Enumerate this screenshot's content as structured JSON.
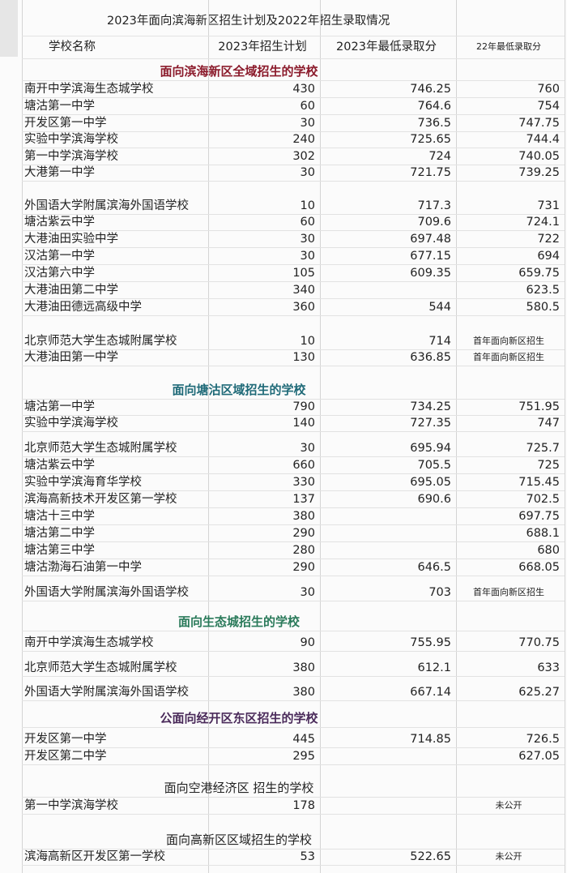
{
  "title": "2023年面向滨海新区招生计划及2022年招生录取情况",
  "header": {
    "columns": [
      "学校名称",
      "2023年招生计划",
      "2023年最低录取分",
      "22年最低录取分"
    ]
  },
  "sections": [
    {
      "heading": "面向滨海新区全域招生的学校",
      "rows": [
        [
          "南开中学滨海生态城学校",
          "430",
          "746.25",
          "760"
        ],
        [
          "塘沽第一中学",
          "60",
          "764.6",
          "754"
        ],
        [
          "开发区第一中学",
          "30",
          "736.5",
          "747.75"
        ],
        [
          "实验中学滨海学校",
          "240",
          "725.65",
          "744.4"
        ],
        [
          "第一中学滨海学校",
          "302",
          "724",
          "740.05"
        ],
        [
          "大港第一中学",
          "30",
          "721.75",
          "739.25"
        ],
        [
          "外国语大学附属滨海外国语学校",
          "10",
          "717.3",
          "731"
        ],
        [
          "塘沽紫云中学",
          "60",
          "709.6",
          "724.1"
        ],
        [
          "大港油田实验中学",
          "30",
          "697.48",
          "722"
        ],
        [
          "汉沽第一中学",
          "30",
          "677.15",
          "694"
        ],
        [
          "汉沽第六中学",
          "105",
          "609.35",
          "659.75"
        ],
        [
          "大港油田第二中学",
          "340",
          null,
          "623.5"
        ],
        [
          "大港油田德远高级中学",
          "360",
          "544",
          "580.5"
        ],
        [
          "北京师范大学生态城附属学校",
          "10",
          "714",
          "首年面向新区招生"
        ],
        [
          "大港油田第一中学",
          "130",
          "636.85",
          "首年面向新区招生"
        ]
      ]
    },
    {
      "heading": "面向塘沽区域招生的学校",
      "rows": [
        [
          "塘沽第一中学",
          "790",
          "734.25",
          "751.95"
        ],
        [
          "实验中学滨海学校",
          "140",
          "727.35",
          "747"
        ],
        [
          "北京师范大学生态城附属学校",
          "30",
          "695.94",
          "725.7"
        ],
        [
          "塘沽紫云中学",
          "660",
          "705.5",
          "725"
        ],
        [
          "实验中学滨海育华学校",
          "330",
          "695.05",
          "715.45"
        ],
        [
          "滨海高新技术开发区第一学校",
          "137",
          "690.6",
          "702.5"
        ],
        [
          "塘沽十三中学",
          "380",
          null,
          "697.75"
        ],
        [
          "塘沽第二中学",
          "290",
          null,
          "688.1"
        ],
        [
          "塘沽第三中学",
          "280",
          null,
          "680"
        ],
        [
          "塘沽渤海石油第一中学",
          "290",
          "646.5",
          "668.05"
        ],
        [
          "外国语大学附属滨海外国语学校",
          "30",
          "703",
          "首年面向新区招生"
        ]
      ]
    },
    {
      "heading": "面向生态城招生的学校",
      "rows": [
        [
          "南开中学滨海生态城学校",
          "90",
          "755.95",
          "770.75"
        ],
        [
          "北京师范大学生态城附属学校",
          "380",
          "612.1",
          "633"
        ],
        [
          "外国语大学附属滨海外国语学校",
          "380",
          "667.14",
          "625.27"
        ]
      ]
    },
    {
      "heading": "公面向经开区东区招生的学校",
      "rows": [
        [
          "开发区第一中学",
          "445",
          "714.85",
          "726.5"
        ],
        [
          "开发区第二中学",
          "295",
          null,
          "627.05"
        ]
      ]
    },
    {
      "heading": "面向空港经济区 招生的学校",
      "rows": [
        [
          "第一中学滨海学校",
          "178",
          null,
          "未公开"
        ]
      ]
    },
    {
      "heading": "面向高新区区域招生的学校",
      "rows": [
        [
          "滨海高新区开发区第一学校",
          "53",
          "522.65",
          "未公开"
        ]
      ]
    }
  ]
}
